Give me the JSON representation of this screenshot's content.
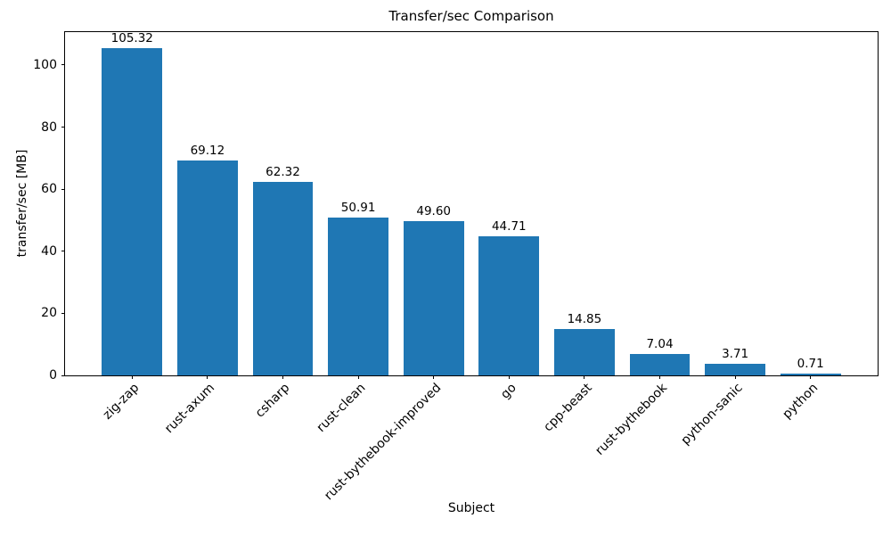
{
  "chart_data": {
    "type": "bar",
    "title": "Transfer/sec Comparison",
    "xlabel": "Subject",
    "ylabel": "transfer/sec [MB]",
    "categories": [
      "zig-zap",
      "rust-axum",
      "csharp",
      "rust-clean",
      "rust-bythebook-improved",
      "go",
      "cpp-beast",
      "rust-bythebook",
      "python-sanic",
      "python"
    ],
    "values": [
      105.32,
      69.12,
      62.32,
      50.91,
      49.6,
      44.71,
      14.85,
      7.04,
      3.71,
      0.71
    ],
    "value_labels": [
      "105.32",
      "69.12",
      "62.32",
      "50.91",
      "49.60",
      "44.71",
      "14.85",
      "7.04",
      "3.71",
      "0.71"
    ],
    "yticks": [
      "0",
      "20",
      "40",
      "60",
      "80",
      "100"
    ],
    "ylim": [
      0,
      110.59
    ],
    "bar_color": "#1f77b4",
    "bar_width_units": 0.8,
    "x_margin_fraction": 0.05,
    "grid": false,
    "legend": null,
    "tick_label_rotation_deg": 45
  }
}
